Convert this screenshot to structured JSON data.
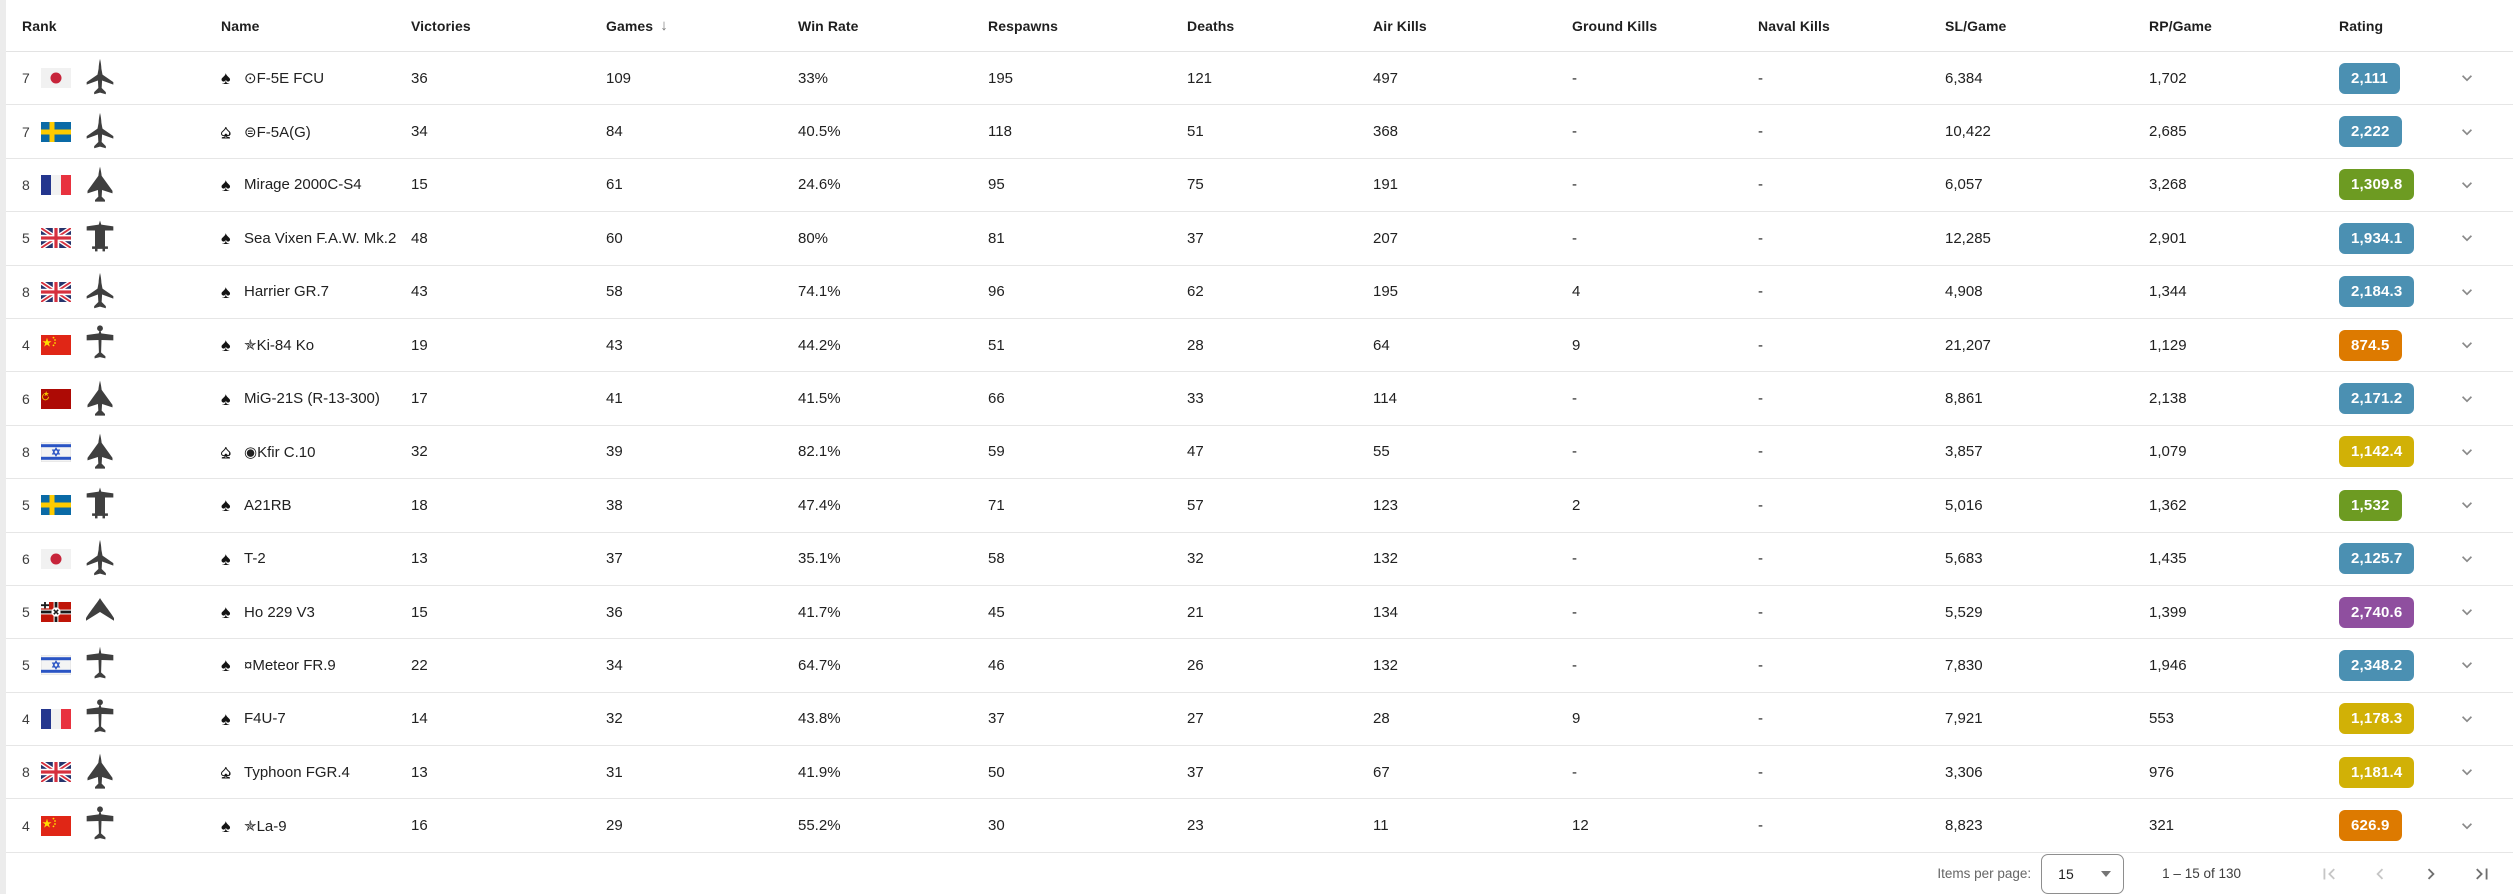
{
  "table": {
    "columns": [
      "Rank",
      "Name",
      "Victories",
      "Games",
      "Win Rate",
      "Respawns",
      "Deaths",
      "Air Kills",
      "Ground Kills",
      "Naval Kills",
      "SL/Game",
      "RP/Game",
      "Rating"
    ],
    "sort": {
      "column": "Games",
      "icon": "↓",
      "direction": "desc"
    },
    "rows": [
      {
        "rank": "7",
        "country": "japan",
        "plane": "jet",
        "spade": "full",
        "name_prefix": "⊙",
        "name": "F-5E FCU",
        "victories": "36",
        "games": "109",
        "win_rate": "33%",
        "respawns": "195",
        "deaths": "121",
        "air_kills": "497",
        "ground_kills": "-",
        "naval_kills": "-",
        "sl_game": "6,384",
        "rp_game": "1,702",
        "rating": "2,111",
        "rating_class": "blue"
      },
      {
        "rank": "7",
        "country": "sweden",
        "plane": "jet",
        "spade": "half",
        "name_prefix": "⊜",
        "name": "F-5A(G)",
        "victories": "34",
        "games": "84",
        "win_rate": "40.5%",
        "respawns": "118",
        "deaths": "51",
        "air_kills": "368",
        "ground_kills": "-",
        "naval_kills": "-",
        "sl_game": "10,422",
        "rp_game": "2,685",
        "rating": "2,222",
        "rating_class": "blue"
      },
      {
        "rank": "8",
        "country": "france",
        "plane": "delta",
        "spade": "full",
        "name_prefix": "",
        "name": "Mirage 2000C-S4",
        "victories": "15",
        "games": "61",
        "win_rate": "24.6%",
        "respawns": "95",
        "deaths": "75",
        "air_kills": "191",
        "ground_kills": "-",
        "naval_kills": "-",
        "sl_game": "6,057",
        "rp_game": "3,268",
        "rating": "1,309.8",
        "rating_class": "green"
      },
      {
        "rank": "5",
        "country": "uk",
        "plane": "twinboom",
        "spade": "full",
        "name_prefix": "",
        "name": "Sea Vixen F.A.W. Mk.2",
        "victories": "48",
        "games": "60",
        "win_rate": "80%",
        "respawns": "81",
        "deaths": "37",
        "air_kills": "207",
        "ground_kills": "-",
        "naval_kills": "-",
        "sl_game": "12,285",
        "rp_game": "2,901",
        "rating": "1,934.1",
        "rating_class": "blue"
      },
      {
        "rank": "8",
        "country": "uk",
        "plane": "jet",
        "spade": "full",
        "name_prefix": "",
        "name": "Harrier GR.7",
        "victories": "43",
        "games": "58",
        "win_rate": "74.1%",
        "respawns": "96",
        "deaths": "62",
        "air_kills": "195",
        "ground_kills": "4",
        "naval_kills": "-",
        "sl_game": "4,908",
        "rp_game": "1,344",
        "rating": "2,184.3",
        "rating_class": "blue"
      },
      {
        "rank": "4",
        "country": "china",
        "plane": "prop",
        "spade": "full",
        "name_prefix": "✯",
        "name": "Ki-84 Ko",
        "victories": "19",
        "games": "43",
        "win_rate": "44.2%",
        "respawns": "51",
        "deaths": "28",
        "air_kills": "64",
        "ground_kills": "9",
        "naval_kills": "-",
        "sl_game": "21,207",
        "rp_game": "1,129",
        "rating": "874.5",
        "rating_class": "orange"
      },
      {
        "rank": "6",
        "country": "ussr",
        "plane": "delta",
        "spade": "full",
        "name_prefix": "",
        "name": "MiG-21S (R-13-300)",
        "victories": "17",
        "games": "41",
        "win_rate": "41.5%",
        "respawns": "66",
        "deaths": "33",
        "air_kills": "114",
        "ground_kills": "-",
        "naval_kills": "-",
        "sl_game": "8,861",
        "rp_game": "2,138",
        "rating": "2,171.2",
        "rating_class": "blue"
      },
      {
        "rank": "8",
        "country": "israel",
        "plane": "delta",
        "spade": "half",
        "name_prefix": "◉",
        "name": "Kfir C.10",
        "victories": "32",
        "games": "39",
        "win_rate": "82.1%",
        "respawns": "59",
        "deaths": "47",
        "air_kills": "55",
        "ground_kills": "-",
        "naval_kills": "-",
        "sl_game": "3,857",
        "rp_game": "1,079",
        "rating": "1,142.4",
        "rating_class": "yellow"
      },
      {
        "rank": "5",
        "country": "sweden",
        "plane": "twinboom",
        "spade": "full",
        "name_prefix": "",
        "name": "A21RB",
        "victories": "18",
        "games": "38",
        "win_rate": "47.4%",
        "respawns": "71",
        "deaths": "57",
        "air_kills": "123",
        "ground_kills": "2",
        "naval_kills": "-",
        "sl_game": "5,016",
        "rp_game": "1,362",
        "rating": "1,532",
        "rating_class": "green"
      },
      {
        "rank": "6",
        "country": "japan",
        "plane": "jet",
        "spade": "full",
        "name_prefix": "",
        "name": "T-2",
        "victories": "13",
        "games": "37",
        "win_rate": "35.1%",
        "respawns": "58",
        "deaths": "32",
        "air_kills": "132",
        "ground_kills": "-",
        "naval_kills": "-",
        "sl_game": "5,683",
        "rp_game": "1,435",
        "rating": "2,125.7",
        "rating_class": "blue"
      },
      {
        "rank": "5",
        "country": "germany",
        "plane": "flyingwing",
        "spade": "full",
        "name_prefix": "",
        "name": "Ho 229 V3",
        "victories": "15",
        "games": "36",
        "win_rate": "41.7%",
        "respawns": "45",
        "deaths": "21",
        "air_kills": "134",
        "ground_kills": "-",
        "naval_kills": "-",
        "sl_game": "5,529",
        "rp_game": "1,399",
        "rating": "2,740.6",
        "rating_class": "purple"
      },
      {
        "rank": "5",
        "country": "israel",
        "plane": "straightjet",
        "spade": "full",
        "name_prefix": "¤",
        "name": "Meteor FR.9",
        "victories": "22",
        "games": "34",
        "win_rate": "64.7%",
        "respawns": "46",
        "deaths": "26",
        "air_kills": "132",
        "ground_kills": "-",
        "naval_kills": "-",
        "sl_game": "7,830",
        "rp_game": "1,946",
        "rating": "2,348.2",
        "rating_class": "blue"
      },
      {
        "rank": "4",
        "country": "france",
        "plane": "prop",
        "spade": "full",
        "name_prefix": "",
        "name": "F4U-7",
        "victories": "14",
        "games": "32",
        "win_rate": "43.8%",
        "respawns": "37",
        "deaths": "27",
        "air_kills": "28",
        "ground_kills": "9",
        "naval_kills": "-",
        "sl_game": "7,921",
        "rp_game": "553",
        "rating": "1,178.3",
        "rating_class": "yellow"
      },
      {
        "rank": "8",
        "country": "uk",
        "plane": "delta",
        "spade": "half",
        "name_prefix": "",
        "name": "Typhoon FGR.4",
        "victories": "13",
        "games": "31",
        "win_rate": "41.9%",
        "respawns": "50",
        "deaths": "37",
        "air_kills": "67",
        "ground_kills": "-",
        "naval_kills": "-",
        "sl_game": "3,306",
        "rp_game": "976",
        "rating": "1,181.4",
        "rating_class": "yellow"
      },
      {
        "rank": "4",
        "country": "china",
        "plane": "prop",
        "spade": "full",
        "name_prefix": "✯",
        "name": "La-9",
        "victories": "16",
        "games": "29",
        "win_rate": "55.2%",
        "respawns": "30",
        "deaths": "23",
        "air_kills": "11",
        "ground_kills": "12",
        "naval_kills": "-",
        "sl_game": "8,823",
        "rp_game": "321",
        "rating": "626.9",
        "rating_class": "orange"
      }
    ]
  },
  "colors": {
    "rating": {
      "blue": "#4b90b2",
      "green": "#6d9b22",
      "orange": "#dd7a00",
      "yellow": "#d1b106",
      "purple": "#8f4f9f"
    }
  },
  "footer": {
    "items_per_page_label": "Items per page:",
    "items_per_page_value": "15",
    "range_text": "1 – 15 of 130"
  }
}
